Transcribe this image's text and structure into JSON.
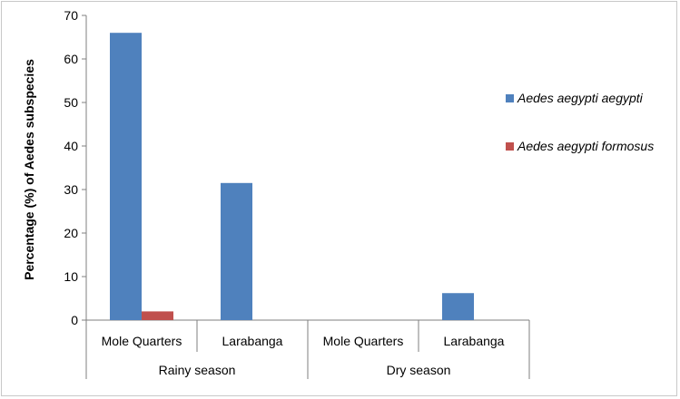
{
  "chart_data": {
    "type": "bar",
    "title": "",
    "xlabel": "",
    "ylabel": "Percentage (%) of  Aedes subspecies",
    "ylim": [
      0,
      70
    ],
    "yticks": [
      0,
      10,
      20,
      30,
      40,
      50,
      60,
      70
    ],
    "categories": [
      "Mole Quarters",
      "Larabanga",
      "Mole Quarters",
      "Larabanga"
    ],
    "groups": [
      {
        "label": "Rainy season",
        "span": [
          0,
          1
        ]
      },
      {
        "label": "Dry  season",
        "span": [
          2,
          3
        ]
      }
    ],
    "series": [
      {
        "name": "Aedes aegypti aegypti",
        "color": "#4F81BD",
        "values": [
          66,
          31.5,
          0,
          6.2
        ]
      },
      {
        "name": "Aedes aegypti formosus",
        "color": "#C0504D",
        "values": [
          2,
          0,
          0,
          0
        ]
      }
    ],
    "legend_position": "right"
  }
}
